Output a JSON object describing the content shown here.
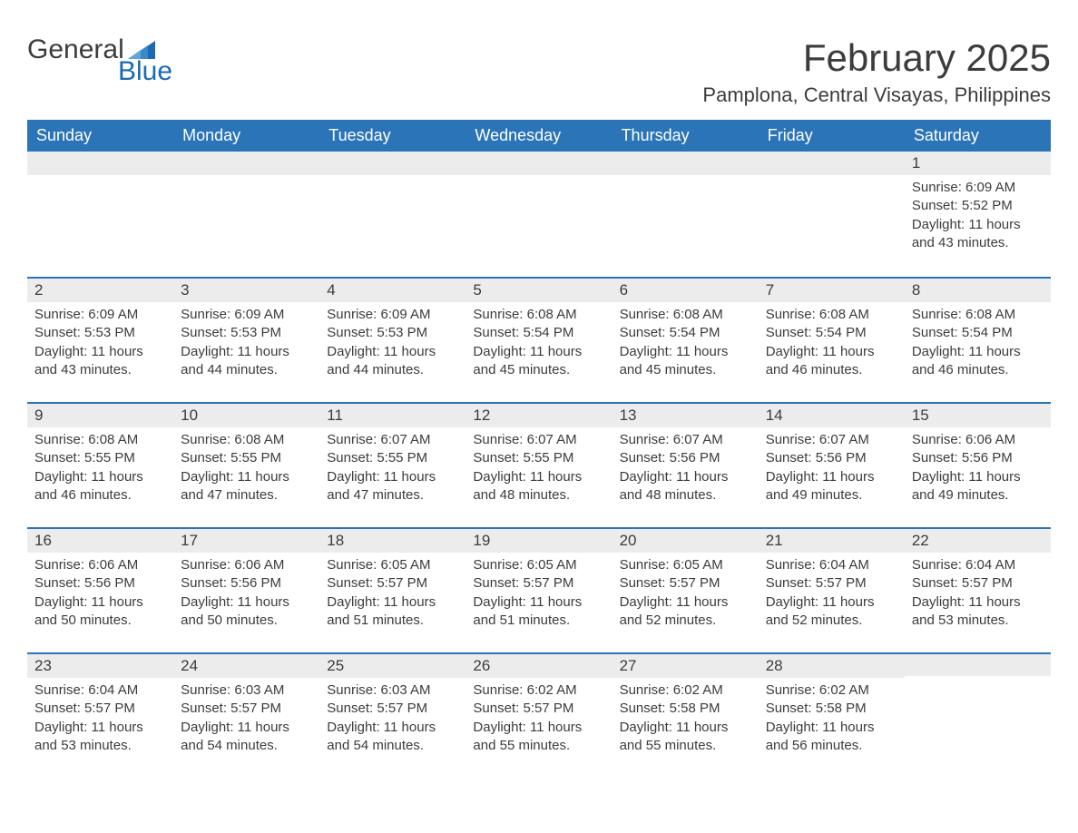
{
  "logo": {
    "text_general": "General",
    "text_blue": "Blue",
    "flag_color": "#1b6ab2"
  },
  "header": {
    "month_title": "February 2025",
    "location": "Pamplona, Central Visayas, Philippines"
  },
  "styling": {
    "header_bg": "#2b74b8",
    "header_text": "#ffffff",
    "daynum_bg": "#ececec",
    "row_border": "#2b74b8",
    "body_text": "#3c3c3c",
    "page_bg": "#ffffff",
    "font_family": "Arial",
    "month_title_fontsize": 42,
    "location_fontsize": 22,
    "weekday_fontsize": 18,
    "daynum_fontsize": 17,
    "detail_fontsize": 15
  },
  "weekdays": [
    "Sunday",
    "Monday",
    "Tuesday",
    "Wednesday",
    "Thursday",
    "Friday",
    "Saturday"
  ],
  "labels": {
    "sunrise_prefix": "Sunrise: ",
    "sunset_prefix": "Sunset: ",
    "daylight_prefix": "Daylight: "
  },
  "weeks": [
    [
      null,
      null,
      null,
      null,
      null,
      null,
      {
        "day": "1",
        "sunrise": "6:09 AM",
        "sunset": "5:52 PM",
        "daylight": "11 hours and 43 minutes."
      }
    ],
    [
      {
        "day": "2",
        "sunrise": "6:09 AM",
        "sunset": "5:53 PM",
        "daylight": "11 hours and 43 minutes."
      },
      {
        "day": "3",
        "sunrise": "6:09 AM",
        "sunset": "5:53 PM",
        "daylight": "11 hours and 44 minutes."
      },
      {
        "day": "4",
        "sunrise": "6:09 AM",
        "sunset": "5:53 PM",
        "daylight": "11 hours and 44 minutes."
      },
      {
        "day": "5",
        "sunrise": "6:08 AM",
        "sunset": "5:54 PM",
        "daylight": "11 hours and 45 minutes."
      },
      {
        "day": "6",
        "sunrise": "6:08 AM",
        "sunset": "5:54 PM",
        "daylight": "11 hours and 45 minutes."
      },
      {
        "day": "7",
        "sunrise": "6:08 AM",
        "sunset": "5:54 PM",
        "daylight": "11 hours and 46 minutes."
      },
      {
        "day": "8",
        "sunrise": "6:08 AM",
        "sunset": "5:54 PM",
        "daylight": "11 hours and 46 minutes."
      }
    ],
    [
      {
        "day": "9",
        "sunrise": "6:08 AM",
        "sunset": "5:55 PM",
        "daylight": "11 hours and 46 minutes."
      },
      {
        "day": "10",
        "sunrise": "6:08 AM",
        "sunset": "5:55 PM",
        "daylight": "11 hours and 47 minutes."
      },
      {
        "day": "11",
        "sunrise": "6:07 AM",
        "sunset": "5:55 PM",
        "daylight": "11 hours and 47 minutes."
      },
      {
        "day": "12",
        "sunrise": "6:07 AM",
        "sunset": "5:55 PM",
        "daylight": "11 hours and 48 minutes."
      },
      {
        "day": "13",
        "sunrise": "6:07 AM",
        "sunset": "5:56 PM",
        "daylight": "11 hours and 48 minutes."
      },
      {
        "day": "14",
        "sunrise": "6:07 AM",
        "sunset": "5:56 PM",
        "daylight": "11 hours and 49 minutes."
      },
      {
        "day": "15",
        "sunrise": "6:06 AM",
        "sunset": "5:56 PM",
        "daylight": "11 hours and 49 minutes."
      }
    ],
    [
      {
        "day": "16",
        "sunrise": "6:06 AM",
        "sunset": "5:56 PM",
        "daylight": "11 hours and 50 minutes."
      },
      {
        "day": "17",
        "sunrise": "6:06 AM",
        "sunset": "5:56 PM",
        "daylight": "11 hours and 50 minutes."
      },
      {
        "day": "18",
        "sunrise": "6:05 AM",
        "sunset": "5:57 PM",
        "daylight": "11 hours and 51 minutes."
      },
      {
        "day": "19",
        "sunrise": "6:05 AM",
        "sunset": "5:57 PM",
        "daylight": "11 hours and 51 minutes."
      },
      {
        "day": "20",
        "sunrise": "6:05 AM",
        "sunset": "5:57 PM",
        "daylight": "11 hours and 52 minutes."
      },
      {
        "day": "21",
        "sunrise": "6:04 AM",
        "sunset": "5:57 PM",
        "daylight": "11 hours and 52 minutes."
      },
      {
        "day": "22",
        "sunrise": "6:04 AM",
        "sunset": "5:57 PM",
        "daylight": "11 hours and 53 minutes."
      }
    ],
    [
      {
        "day": "23",
        "sunrise": "6:04 AM",
        "sunset": "5:57 PM",
        "daylight": "11 hours and 53 minutes."
      },
      {
        "day": "24",
        "sunrise": "6:03 AM",
        "sunset": "5:57 PM",
        "daylight": "11 hours and 54 minutes."
      },
      {
        "day": "25",
        "sunrise": "6:03 AM",
        "sunset": "5:57 PM",
        "daylight": "11 hours and 54 minutes."
      },
      {
        "day": "26",
        "sunrise": "6:02 AM",
        "sunset": "5:57 PM",
        "daylight": "11 hours and 55 minutes."
      },
      {
        "day": "27",
        "sunrise": "6:02 AM",
        "sunset": "5:58 PM",
        "daylight": "11 hours and 55 minutes."
      },
      {
        "day": "28",
        "sunrise": "6:02 AM",
        "sunset": "5:58 PM",
        "daylight": "11 hours and 56 minutes."
      },
      null
    ]
  ]
}
